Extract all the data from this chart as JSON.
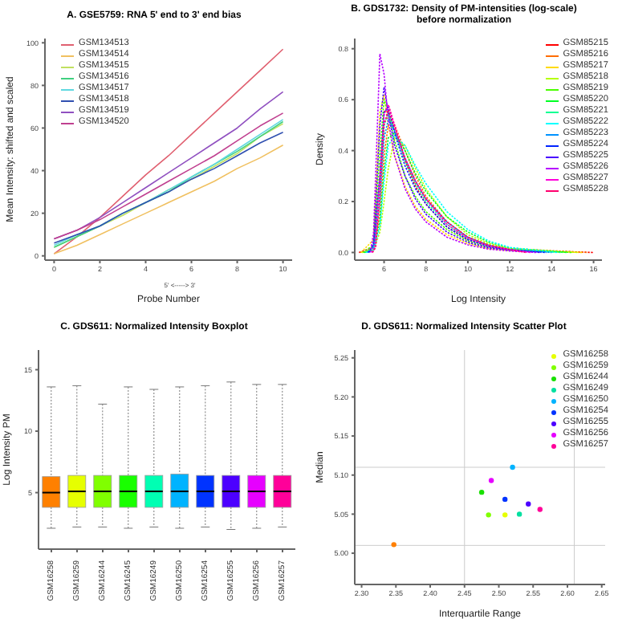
{
  "chart_data": [
    {
      "type": "line",
      "title": "A. GSE5759: RNA 5' end to 3' end bias",
      "xlabel": "Probe Number",
      "ylabel": "Mean Intensity: shifted and scaled",
      "annotations": [
        "5' <-----> 3'"
      ],
      "legend": "top left",
      "marker": "none",
      "x": [
        0,
        1,
        2,
        3,
        4,
        5,
        6,
        7,
        8,
        9,
        10
      ],
      "xlim": [
        -0.4,
        10.4
      ],
      "xticks": [
        0,
        2,
        4,
        6,
        8,
        10
      ],
      "ylim": [
        -2,
        102
      ],
      "yticks": [
        0,
        20,
        40,
        60,
        80,
        100
      ],
      "series": [
        {
          "name": "GSM134513",
          "color": "#e06070",
          "values": [
            1,
            9,
            18,
            28,
            38,
            47,
            57,
            67,
            77,
            87,
            97
          ]
        },
        {
          "name": "GSM134514",
          "color": "#f0c060",
          "values": [
            1,
            5,
            10,
            15,
            20,
            25,
            30,
            35,
            41,
            46,
            52
          ]
        },
        {
          "name": "GSM134515",
          "color": "#c0e060",
          "values": [
            4,
            9,
            14,
            19,
            25,
            31,
            36,
            42,
            48,
            56,
            62
          ]
        },
        {
          "name": "GSM134516",
          "color": "#40d080",
          "values": [
            4,
            9,
            14,
            20,
            25,
            30,
            37,
            43,
            49,
            56,
            63
          ]
        },
        {
          "name": "GSM134517",
          "color": "#60d8e0",
          "values": [
            5,
            10,
            14,
            20,
            25,
            31,
            37,
            43,
            50,
            57,
            64
          ]
        },
        {
          "name": "GSM134518",
          "color": "#3050b0",
          "values": [
            6,
            10,
            14,
            20,
            25,
            30,
            36,
            41,
            47,
            53,
            58
          ]
        },
        {
          "name": "GSM134519",
          "color": "#9050c0",
          "values": [
            8,
            12,
            18,
            25,
            32,
            39,
            46,
            53,
            60,
            69,
            77
          ]
        },
        {
          "name": "GSM134520",
          "color": "#c04090",
          "values": [
            8,
            12,
            17,
            23,
            29,
            35,
            41,
            47,
            54,
            61,
            67
          ]
        }
      ]
    },
    {
      "type": "line",
      "title": "B. GDS1732: Density of PM-intensities (log-scale) before normalization",
      "xlabel": "Log Intensity",
      "ylabel": "Density",
      "legend": "top right",
      "marker": "none",
      "line_style": "dotted",
      "xlim": [
        4.6,
        16.4
      ],
      "xticks": [
        6,
        8,
        10,
        12,
        14,
        16
      ],
      "ylim": [
        -0.03,
        0.84
      ],
      "yticks": [
        {
          "value": 0,
          "label": "0.0"
        },
        {
          "value": 0.2,
          "label": "0.2"
        },
        {
          "value": 0.4,
          "label": "0.4"
        },
        {
          "value": 0.6,
          "label": "0.6"
        },
        {
          "value": 0.8,
          "label": "0.8"
        }
      ],
      "series": [
        {
          "name": "GSM85215",
          "color": "#ff0000",
          "x": [
            4.8,
            5.5,
            5.8,
            6,
            6.2,
            6.5,
            7,
            7.5,
            8,
            9,
            10,
            11,
            12,
            16
          ],
          "values": [
            0,
            0.02,
            0.3,
            0.55,
            0.58,
            0.5,
            0.36,
            0.26,
            0.19,
            0.1,
            0.05,
            0.025,
            0.01,
            0
          ]
        },
        {
          "name": "GSM85216",
          "color": "#ff6d00",
          "x": [
            4.85,
            5.5,
            5.8,
            6,
            6.2,
            6.5,
            7,
            7.5,
            8,
            9,
            10,
            11,
            12,
            15.75
          ],
          "values": [
            0,
            0.01,
            0.15,
            0.38,
            0.5,
            0.5,
            0.4,
            0.3,
            0.22,
            0.12,
            0.06,
            0.03,
            0.015,
            0
          ]
        },
        {
          "name": "GSM85217",
          "color": "#ffdb00",
          "x": [
            4.9,
            5.5,
            5.8,
            6,
            6.2,
            6.5,
            7,
            7.5,
            8,
            9,
            10,
            11,
            12,
            15.5
          ],
          "values": [
            0,
            0.05,
            0.55,
            0.62,
            0.5,
            0.38,
            0.26,
            0.18,
            0.13,
            0.07,
            0.035,
            0.015,
            0.007,
            0
          ]
        },
        {
          "name": "GSM85218",
          "color": "#b6ff00",
          "x": [
            4.95,
            5.5,
            5.8,
            6,
            6.2,
            6.5,
            7,
            7.5,
            8,
            9,
            10,
            11,
            12,
            15.25
          ],
          "values": [
            0,
            0.01,
            0.08,
            0.2,
            0.33,
            0.45,
            0.42,
            0.33,
            0.25,
            0.14,
            0.07,
            0.035,
            0.015,
            0
          ]
        },
        {
          "name": "GSM85219",
          "color": "#49ff00",
          "x": [
            5,
            5.5,
            5.8,
            6,
            6.2,
            6.5,
            7,
            7.5,
            8,
            9,
            10,
            11,
            12,
            15
          ],
          "values": [
            0,
            0.03,
            0.4,
            0.6,
            0.55,
            0.44,
            0.3,
            0.22,
            0.16,
            0.09,
            0.045,
            0.02,
            0.01,
            0
          ]
        },
        {
          "name": "GSM85220",
          "color": "#00ff24",
          "x": [
            5.05,
            5.5,
            5.8,
            6,
            6.2,
            6.5,
            7,
            7.5,
            8,
            9,
            10,
            11,
            12,
            14.75
          ],
          "values": [
            0,
            0.01,
            0.12,
            0.32,
            0.45,
            0.47,
            0.4,
            0.31,
            0.24,
            0.14,
            0.08,
            0.04,
            0.018,
            0
          ]
        },
        {
          "name": "GSM85221",
          "color": "#00ff92",
          "x": [
            5.1,
            5.5,
            5.8,
            6,
            6.2,
            6.5,
            7,
            7.5,
            8,
            9,
            10,
            11,
            12,
            14.5
          ],
          "values": [
            0,
            0.02,
            0.25,
            0.5,
            0.55,
            0.48,
            0.36,
            0.27,
            0.2,
            0.11,
            0.055,
            0.025,
            0.01,
            0
          ]
        },
        {
          "name": "GSM85222",
          "color": "#00ffff",
          "x": [
            5.15,
            5.5,
            5.8,
            6,
            6.2,
            6.5,
            7,
            7.5,
            8,
            9,
            10,
            11,
            12,
            14.25
          ],
          "values": [
            0,
            0.01,
            0.1,
            0.28,
            0.42,
            0.46,
            0.42,
            0.34,
            0.27,
            0.16,
            0.09,
            0.045,
            0.02,
            0
          ]
        },
        {
          "name": "GSM85223",
          "color": "#0092ff",
          "x": [
            5.2,
            5.5,
            5.8,
            6,
            6.2,
            6.5,
            7,
            7.5,
            8,
            9,
            10,
            11,
            12,
            14
          ],
          "values": [
            0,
            0.02,
            0.2,
            0.45,
            0.52,
            0.48,
            0.37,
            0.28,
            0.21,
            0.12,
            0.06,
            0.028,
            0.012,
            0
          ]
        },
        {
          "name": "GSM85224",
          "color": "#0024ff",
          "x": [
            5.25,
            5.5,
            5.8,
            6,
            6.2,
            6.5,
            7,
            7.5,
            8,
            9,
            10,
            11,
            12,
            13.75
          ],
          "values": [
            0,
            0.03,
            0.3,
            0.55,
            0.57,
            0.47,
            0.34,
            0.25,
            0.19,
            0.1,
            0.05,
            0.023,
            0.01,
            0
          ]
        },
        {
          "name": "GSM85225",
          "color": "#4900ff",
          "x": [
            5.3,
            5.5,
            5.8,
            6,
            6.2,
            6.5,
            7,
            7.5,
            8,
            9,
            10,
            11,
            12,
            13.5
          ],
          "values": [
            0,
            0.04,
            0.5,
            0.65,
            0.55,
            0.42,
            0.3,
            0.21,
            0.15,
            0.08,
            0.04,
            0.018,
            0.008,
            0
          ]
        },
        {
          "name": "GSM85226",
          "color": "#b600ff",
          "x": [
            5.35,
            5.5,
            5.8,
            6,
            6.2,
            6.5,
            7,
            7.5,
            8,
            9,
            10,
            11,
            12,
            13.25
          ],
          "values": [
            0,
            0.08,
            0.78,
            0.7,
            0.52,
            0.38,
            0.25,
            0.17,
            0.12,
            0.06,
            0.03,
            0.013,
            0.006,
            0
          ]
        },
        {
          "name": "GSM85227",
          "color": "#ff00db",
          "x": [
            5.4,
            5.55,
            5.8,
            6,
            6.2,
            6.5,
            7,
            7.5,
            8,
            9,
            10,
            11,
            12,
            13
          ],
          "values": [
            0,
            0.02,
            0.28,
            0.54,
            0.58,
            0.5,
            0.37,
            0.28,
            0.21,
            0.11,
            0.055,
            0.025,
            0.011,
            0
          ]
        },
        {
          "name": "GSM85228",
          "color": "#ff006d",
          "x": [
            5.45,
            5.6,
            5.8,
            6,
            6.2,
            6.5,
            7,
            7.5,
            8,
            9,
            10,
            11,
            12,
            12.75
          ],
          "values": [
            0,
            0.02,
            0.22,
            0.5,
            0.56,
            0.49,
            0.37,
            0.28,
            0.21,
            0.12,
            0.06,
            0.028,
            0.012,
            0
          ]
        }
      ]
    },
    {
      "type": "box",
      "title": "C. GDS611: Normalized Intensity Boxplot",
      "ylabel": "Log Intensity PM",
      "categories": [
        "GSM16258",
        "GSM16259",
        "GSM16244",
        "GSM16245",
        "GSM16249",
        "GSM16250",
        "GSM16254",
        "GSM16255",
        "GSM16256",
        "GSM16257"
      ],
      "colors": [
        "#ff8000",
        "#e6ff00",
        "#80ff00",
        "#19ff00",
        "#00ffb3",
        "#00b3ff",
        "#0033ff",
        "#4c00ff",
        "#e600ff",
        "#ff0099"
      ],
      "ylim": [
        0.4,
        16.6
      ],
      "yticks": [
        5,
        10,
        15
      ],
      "boxes": [
        {
          "low": 2.1,
          "q1": 3.8,
          "median": 5.0,
          "q3": 6.3,
          "high": 13.6
        },
        {
          "low": 2.2,
          "q1": 3.8,
          "median": 5.1,
          "q3": 6.4,
          "high": 13.7
        },
        {
          "low": 2.2,
          "q1": 3.8,
          "median": 5.1,
          "q3": 6.4,
          "high": 12.2
        },
        {
          "low": 2.1,
          "q1": 3.8,
          "median": 5.1,
          "q3": 6.4,
          "high": 13.6
        },
        {
          "low": 2.2,
          "q1": 3.8,
          "median": 5.1,
          "q3": 6.4,
          "high": 13.4
        },
        {
          "low": 2.1,
          "q1": 3.8,
          "median": 5.1,
          "q3": 6.5,
          "high": 13.6
        },
        {
          "low": 2.2,
          "q1": 3.8,
          "median": 5.1,
          "q3": 6.4,
          "high": 13.7
        },
        {
          "low": 2.0,
          "q1": 3.8,
          "median": 5.1,
          "q3": 6.4,
          "high": 14.0
        },
        {
          "low": 2.1,
          "q1": 3.8,
          "median": 5.1,
          "q3": 6.4,
          "high": 13.8
        },
        {
          "low": 2.2,
          "q1": 3.8,
          "median": 5.1,
          "q3": 6.4,
          "high": 13.8
        }
      ]
    },
    {
      "type": "scatter",
      "title": "D. GDS611: Normalized Intensity Scatter Plot",
      "xlabel": "Interquartile Range",
      "ylabel": "Median",
      "legend": "top right",
      "marker": "circle",
      "xlim": [
        2.29,
        2.655
      ],
      "ylim": [
        4.96,
        5.26
      ],
      "xticks": [
        {
          "value": 2.3,
          "label": "2.30"
        },
        {
          "value": 2.35,
          "label": "2.35"
        },
        {
          "value": 2.4,
          "label": "2.40"
        },
        {
          "value": 2.45,
          "label": "2.45"
        },
        {
          "value": 2.5,
          "label": "2.50"
        },
        {
          "value": 2.55,
          "label": "2.55"
        },
        {
          "value": 2.6,
          "label": "2.60"
        },
        {
          "value": 2.65,
          "label": "2.65"
        }
      ],
      "yticks": [
        {
          "value": 5,
          "label": "5.00"
        },
        {
          "value": 5.05,
          "label": "5.05"
        },
        {
          "value": 5.1,
          "label": "5.10"
        },
        {
          "value": 5.15,
          "label": "5.15"
        },
        {
          "value": 5.2,
          "label": "5.20"
        },
        {
          "value": 5.25,
          "label": "5.25"
        }
      ],
      "ref_lines": [
        {
          "axis": "x",
          "value": 2.45,
          "color": "#cccccc"
        },
        {
          "axis": "x",
          "value": 2.61,
          "color": "#cccccc"
        },
        {
          "axis": "y",
          "value": 5.11,
          "color": "#cccccc"
        },
        {
          "axis": "y",
          "value": 5.01,
          "color": "#cccccc"
        }
      ],
      "series": [
        {
          "color": "#ff8000",
          "x": [
            2.347
          ],
          "values": [
            5.011
          ]
        },
        {
          "name": "GSM16258",
          "color": "#e6ff00",
          "x": [
            2.509
          ],
          "values": [
            5.049
          ]
        },
        {
          "name": "GSM16259",
          "color": "#80ff00",
          "x": [
            2.485
          ],
          "values": [
            5.049
          ]
        },
        {
          "name": "GSM16244",
          "color": "#19e000",
          "x": [
            2.475
          ],
          "values": [
            5.078
          ]
        },
        {
          "name": "GSM16249",
          "color": "#00e0a0",
          "x": [
            2.53
          ],
          "values": [
            5.05
          ]
        },
        {
          "name": "GSM16250",
          "color": "#00b3ff",
          "x": [
            2.52
          ],
          "values": [
            5.11
          ]
        },
        {
          "name": "GSM16254",
          "color": "#0033ff",
          "x": [
            2.509
          ],
          "values": [
            5.069
          ]
        },
        {
          "name": "GSM16255",
          "color": "#4c00ff",
          "x": [
            2.543
          ],
          "values": [
            5.063
          ]
        },
        {
          "name": "GSM16256",
          "color": "#e600ff",
          "x": [
            2.489
          ],
          "values": [
            5.093
          ]
        },
        {
          "name": "GSM16257",
          "color": "#ff0099",
          "x": [
            2.56
          ],
          "values": [
            5.056
          ]
        }
      ]
    }
  ]
}
